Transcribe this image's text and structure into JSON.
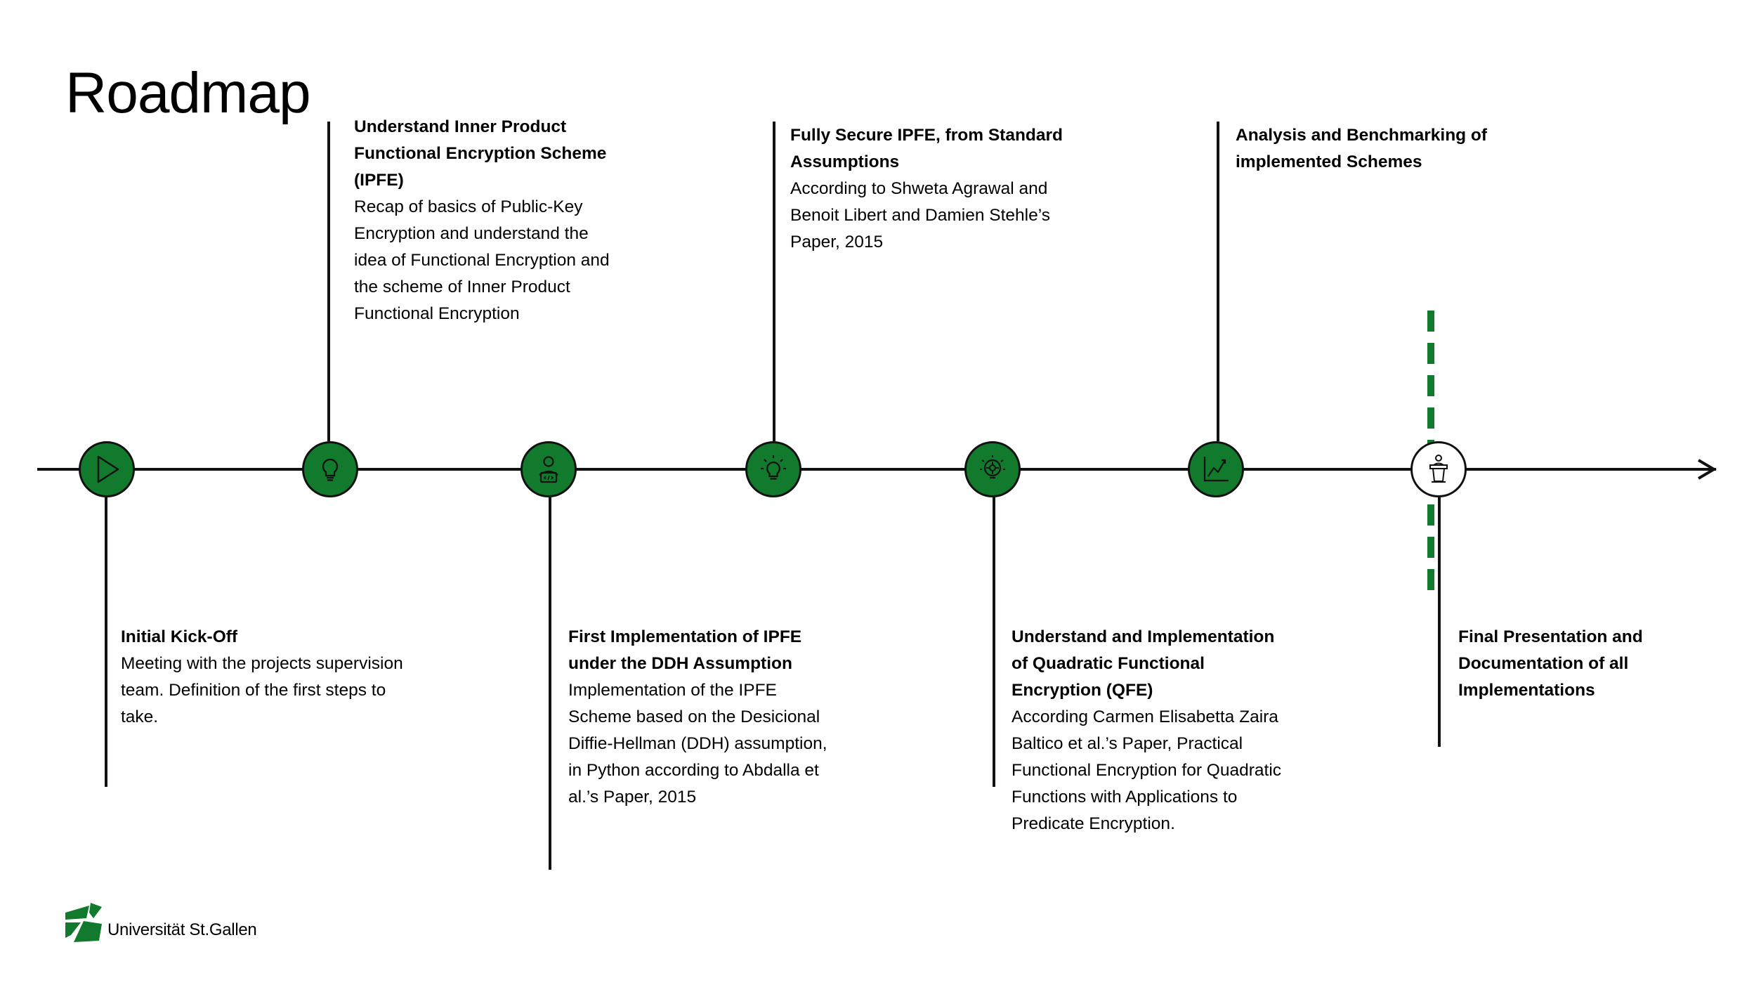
{
  "slide": {
    "title": "Roadmap"
  },
  "colors": {
    "accent": "#117a2d",
    "line": "#111111",
    "current_fill": "#ffffff"
  },
  "milestones": [
    {
      "icon": "play-icon",
      "heading": "Initial Kick-Off",
      "body": "Meeting with the projects supervision team. Definition of the first steps to take.",
      "status": "done"
    },
    {
      "icon": "lightbulb-icon",
      "heading": "Understand Inner Product Functional Encryption Scheme (IPFE)",
      "body": "Recap of basics of Public-Key Encryption and understand the idea of Functional Encryption and the scheme of Inner Product Functional Encryption",
      "status": "done"
    },
    {
      "icon": "developer-icon",
      "heading": "First Implementation of IPFE under the DDH Assumption",
      "body": "Implementation of the IPFE Scheme based on the Desicional Diffie-Hellman (DDH) assumption, in Python according to Abdalla et al.’s Paper, 2015",
      "status": "done"
    },
    {
      "icon": "idea-lightbulb-icon",
      "heading": "Fully Secure IPFE, from Standard Assumptions",
      "body": "According to Shweta Agrawal and Benoit Libert and Damien Stehle’s Paper, 2015",
      "status": "done"
    },
    {
      "icon": "gear-bulb-icon",
      "heading": "Understand and Implementation of Quadratic Functional Encryption (QFE)",
      "body": "According Carmen Elisabetta Zaira Baltico et al.’s Paper, Practical Functional Encryption for Quadratic Functions with Applications to Predicate Encryption.",
      "status": "done"
    },
    {
      "icon": "line-chart-icon",
      "heading": "Analysis and Benchmarking of implemented Schemes",
      "body": "",
      "status": "done"
    },
    {
      "icon": "podium-icon",
      "heading": "Final Presentation and Documentation of all Implementations",
      "body": "",
      "status": "current"
    }
  ],
  "footer": {
    "logo_text": "Universität St.Gallen"
  }
}
